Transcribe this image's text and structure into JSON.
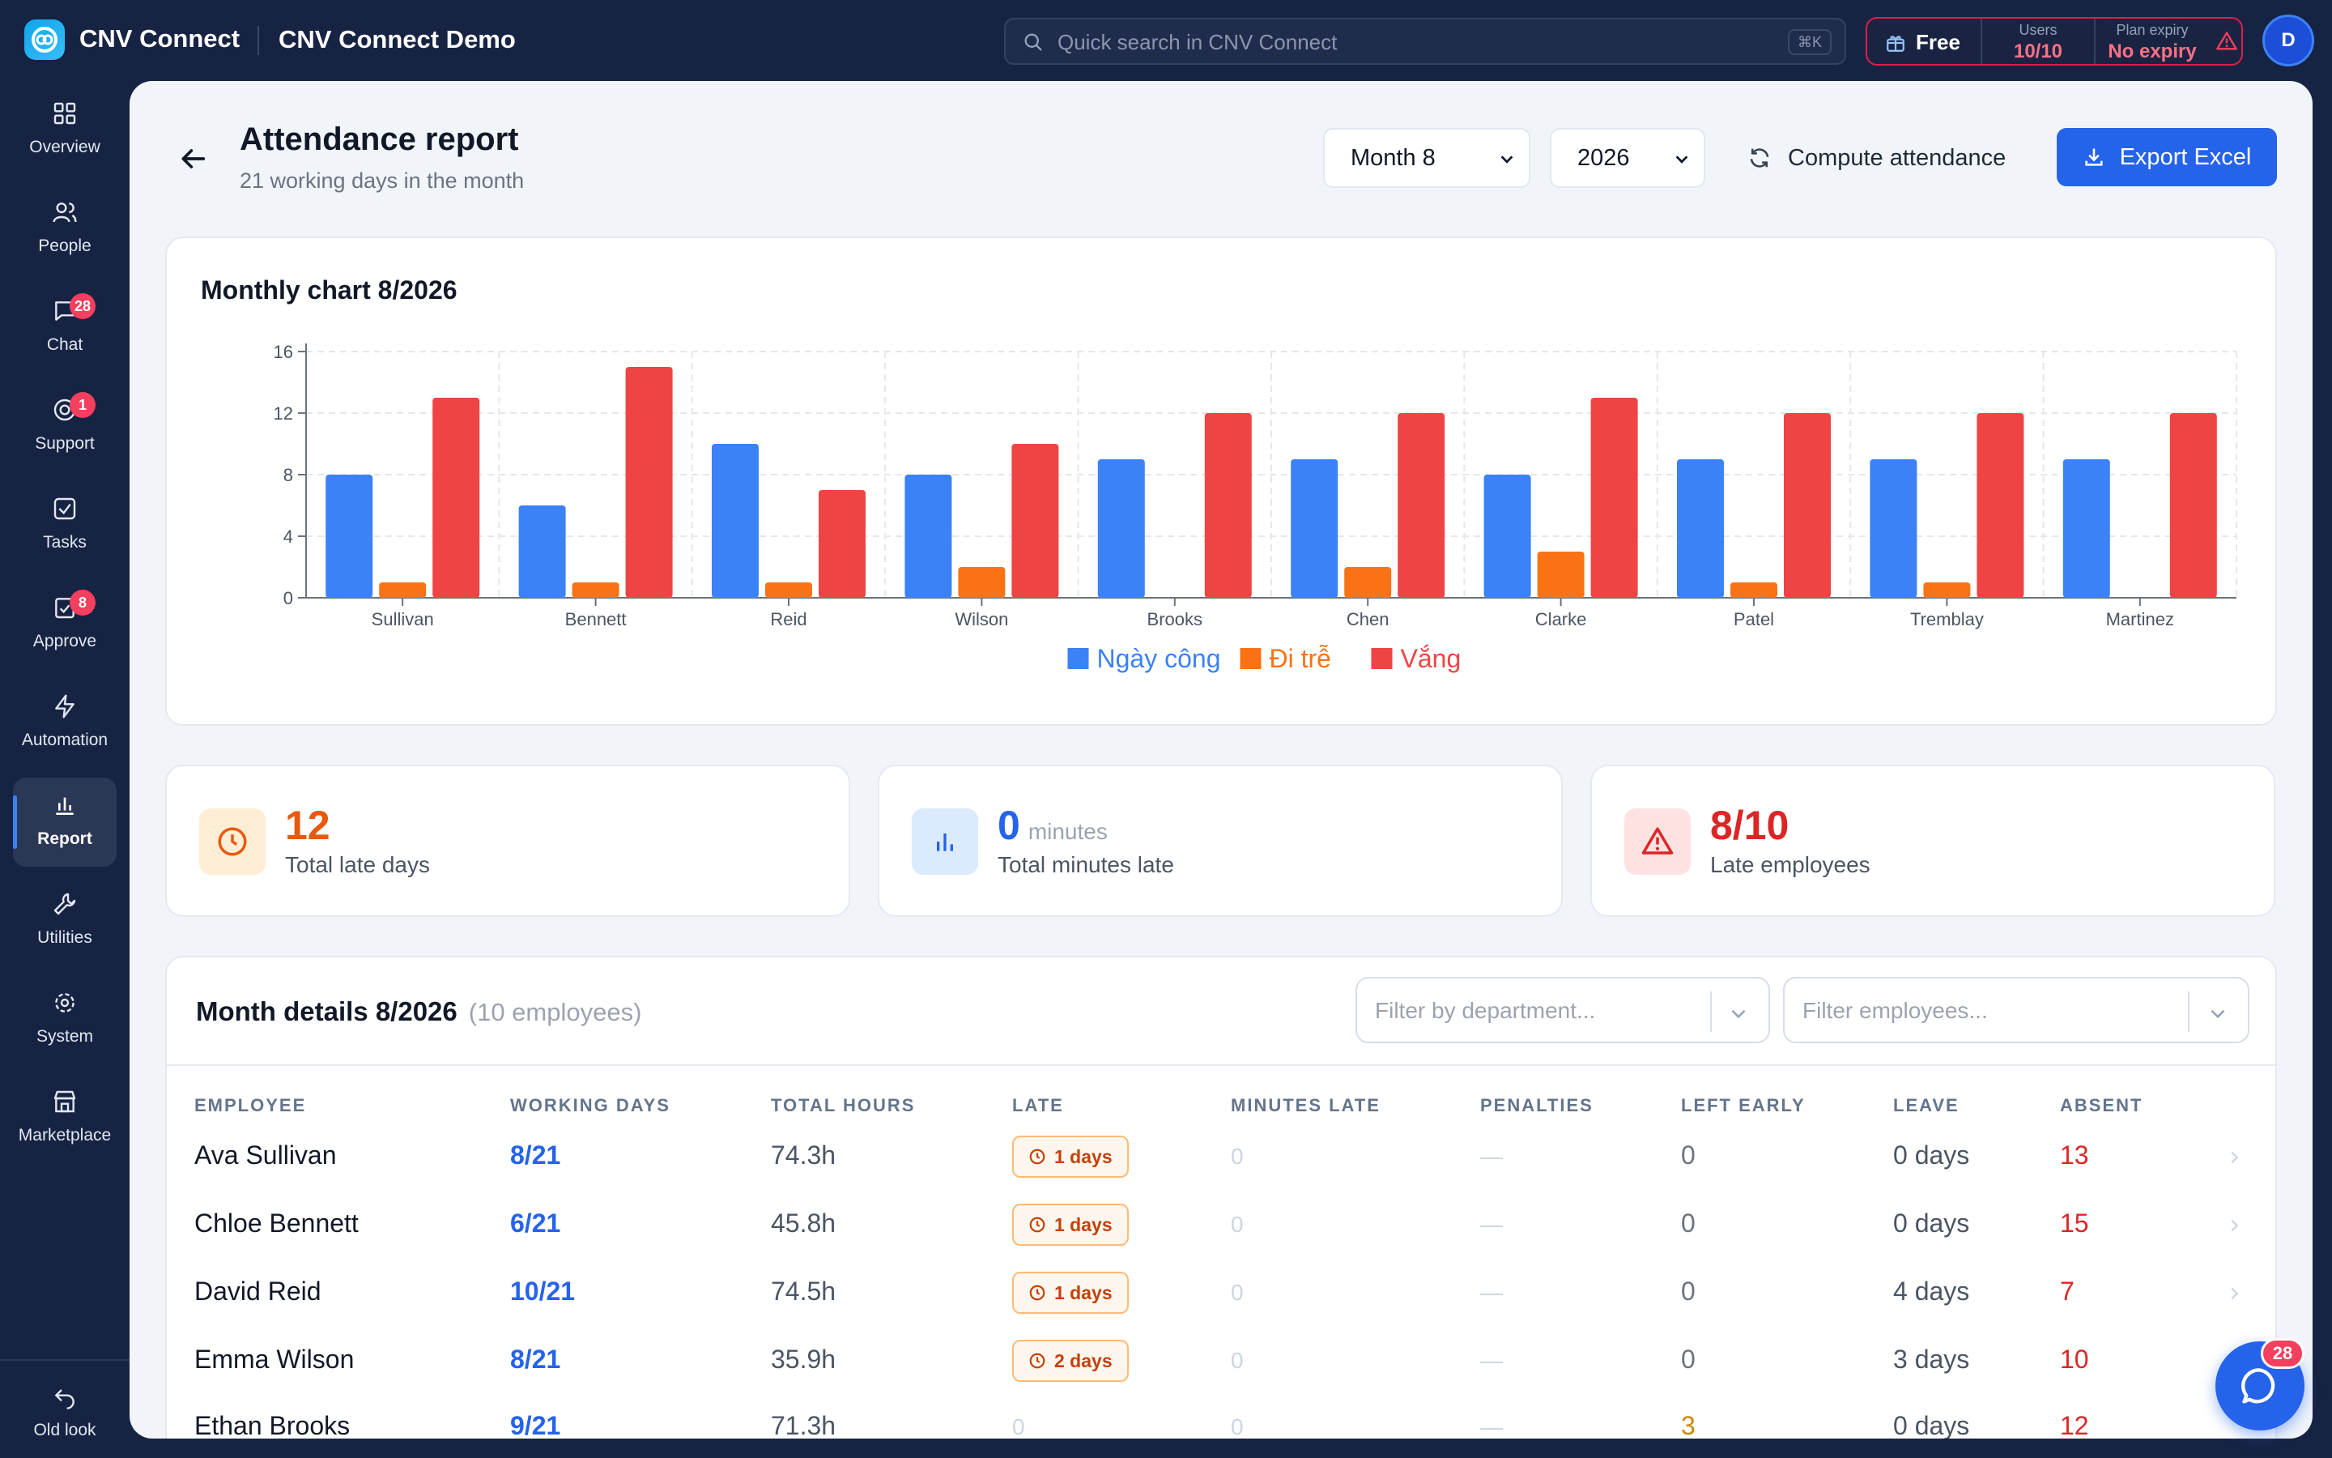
{
  "app": {
    "name": "CNV Connect",
    "workspace": "CNV Connect Demo",
    "search_placeholder": "Quick search in CNV Connect",
    "search_shortcut": "⌘K",
    "plan": {
      "name": "Free",
      "users_label": "Users",
      "users_value": "10/10",
      "expiry_label": "Plan expiry",
      "expiry_value": "No expiry"
    },
    "avatar_initial": "D"
  },
  "sidebar": {
    "items": [
      {
        "label": "Overview",
        "icon": "grid-icon",
        "badge": ""
      },
      {
        "label": "People",
        "icon": "users-icon",
        "badge": ""
      },
      {
        "label": "Chat",
        "icon": "chat-icon",
        "badge": "28"
      },
      {
        "label": "Support",
        "icon": "support-icon",
        "badge": "1"
      },
      {
        "label": "Tasks",
        "icon": "checkbox-icon",
        "badge": ""
      },
      {
        "label": "Approve",
        "icon": "approve-icon",
        "badge": "8"
      },
      {
        "label": "Automation",
        "icon": "lightning-icon",
        "badge": ""
      },
      {
        "label": "Report",
        "icon": "bar-chart-icon",
        "badge": ""
      },
      {
        "label": "Utilities",
        "icon": "wrench-icon",
        "badge": ""
      },
      {
        "label": "System",
        "icon": "gear-icon",
        "badge": ""
      },
      {
        "label": "Marketplace",
        "icon": "store-icon",
        "badge": ""
      }
    ],
    "active": "Report",
    "old_look_label": "Old look"
  },
  "header": {
    "title": "Attendance report",
    "subtitle": "21 working days in the month",
    "month_select": {
      "value": "Month 8",
      "options": [
        "Month 8"
      ]
    },
    "year_select": {
      "value": "2026",
      "options": [
        "2026"
      ]
    },
    "compute_label": "Compute attendance",
    "export_label": "Export Excel"
  },
  "chart_card": {
    "title": "Monthly chart 8/2026"
  },
  "chart_data": {
    "type": "bar",
    "title": "Monthly chart 8/2026",
    "xlabel": "",
    "ylabel": "",
    "categories": [
      "Sullivan",
      "Bennett",
      "Reid",
      "Wilson",
      "Brooks",
      "Chen",
      "Clarke",
      "Patel",
      "Tremblay",
      "Martinez"
    ],
    "series": [
      {
        "name": "Ngày công",
        "color": "#3b82f6",
        "values": [
          8,
          6,
          10,
          8,
          9,
          9,
          8,
          9,
          9,
          9
        ]
      },
      {
        "name": "Đi trễ",
        "color": "#f97316",
        "values": [
          1,
          1,
          1,
          2,
          0,
          2,
          3,
          1,
          1,
          0
        ]
      },
      {
        "name": "Vắng",
        "color": "#ef4444",
        "values": [
          13,
          15,
          7,
          10,
          12,
          12,
          13,
          12,
          12,
          12
        ]
      }
    ],
    "ylim": [
      0,
      16
    ],
    "yticks": [
      0,
      4,
      8,
      12,
      16
    ],
    "grid": true,
    "legend": "bottom-center"
  },
  "stats": [
    {
      "value": "12",
      "unit": "",
      "label": "Total late days",
      "icon": "clock-icon",
      "color": "#ea580c"
    },
    {
      "value": "0",
      "unit": "minutes",
      "label": "Total minutes late",
      "icon": "bar-chart-icon",
      "color": "#2563eb"
    },
    {
      "value": "8/10",
      "unit": "",
      "label": "Late employees",
      "icon": "warning-icon",
      "color": "#dc2626"
    }
  ],
  "table": {
    "title": "Month details 8/2026",
    "count": "(10 employees)",
    "dept_filter_placeholder": "Filter by department...",
    "emp_filter_placeholder": "Filter employees...",
    "columns": [
      "EMPLOYEE",
      "WORKING DAYS",
      "TOTAL HOURS",
      "LATE",
      "MINUTES LATE",
      "PENALTIES",
      "LEFT EARLY",
      "LEAVE",
      "ABSENT"
    ],
    "rows": [
      {
        "name": "Ava Sullivan",
        "days": "8/21",
        "hours": "74.3h",
        "late": "1 days",
        "minutes": "0",
        "penalties": "—",
        "early": "0",
        "leave": "0 days",
        "absent": "13"
      },
      {
        "name": "Chloe Bennett",
        "days": "6/21",
        "hours": "45.8h",
        "late": "1 days",
        "minutes": "0",
        "penalties": "—",
        "early": "0",
        "leave": "0 days",
        "absent": "15"
      },
      {
        "name": "David Reid",
        "days": "10/21",
        "hours": "74.5h",
        "late": "1 days",
        "minutes": "0",
        "penalties": "—",
        "early": "0",
        "leave": "4 days",
        "absent": "7"
      },
      {
        "name": "Emma Wilson",
        "days": "8/21",
        "hours": "35.9h",
        "late": "2 days",
        "minutes": "0",
        "penalties": "—",
        "early": "0",
        "leave": "3 days",
        "absent": "10"
      },
      {
        "name": "Ethan Brooks",
        "days": "9/21",
        "hours": "71.3h",
        "late": "0",
        "minutes": "0",
        "penalties": "—",
        "early": "3",
        "leave": "0 days",
        "absent": "12"
      }
    ]
  },
  "chat_fab": {
    "badge": "28"
  }
}
